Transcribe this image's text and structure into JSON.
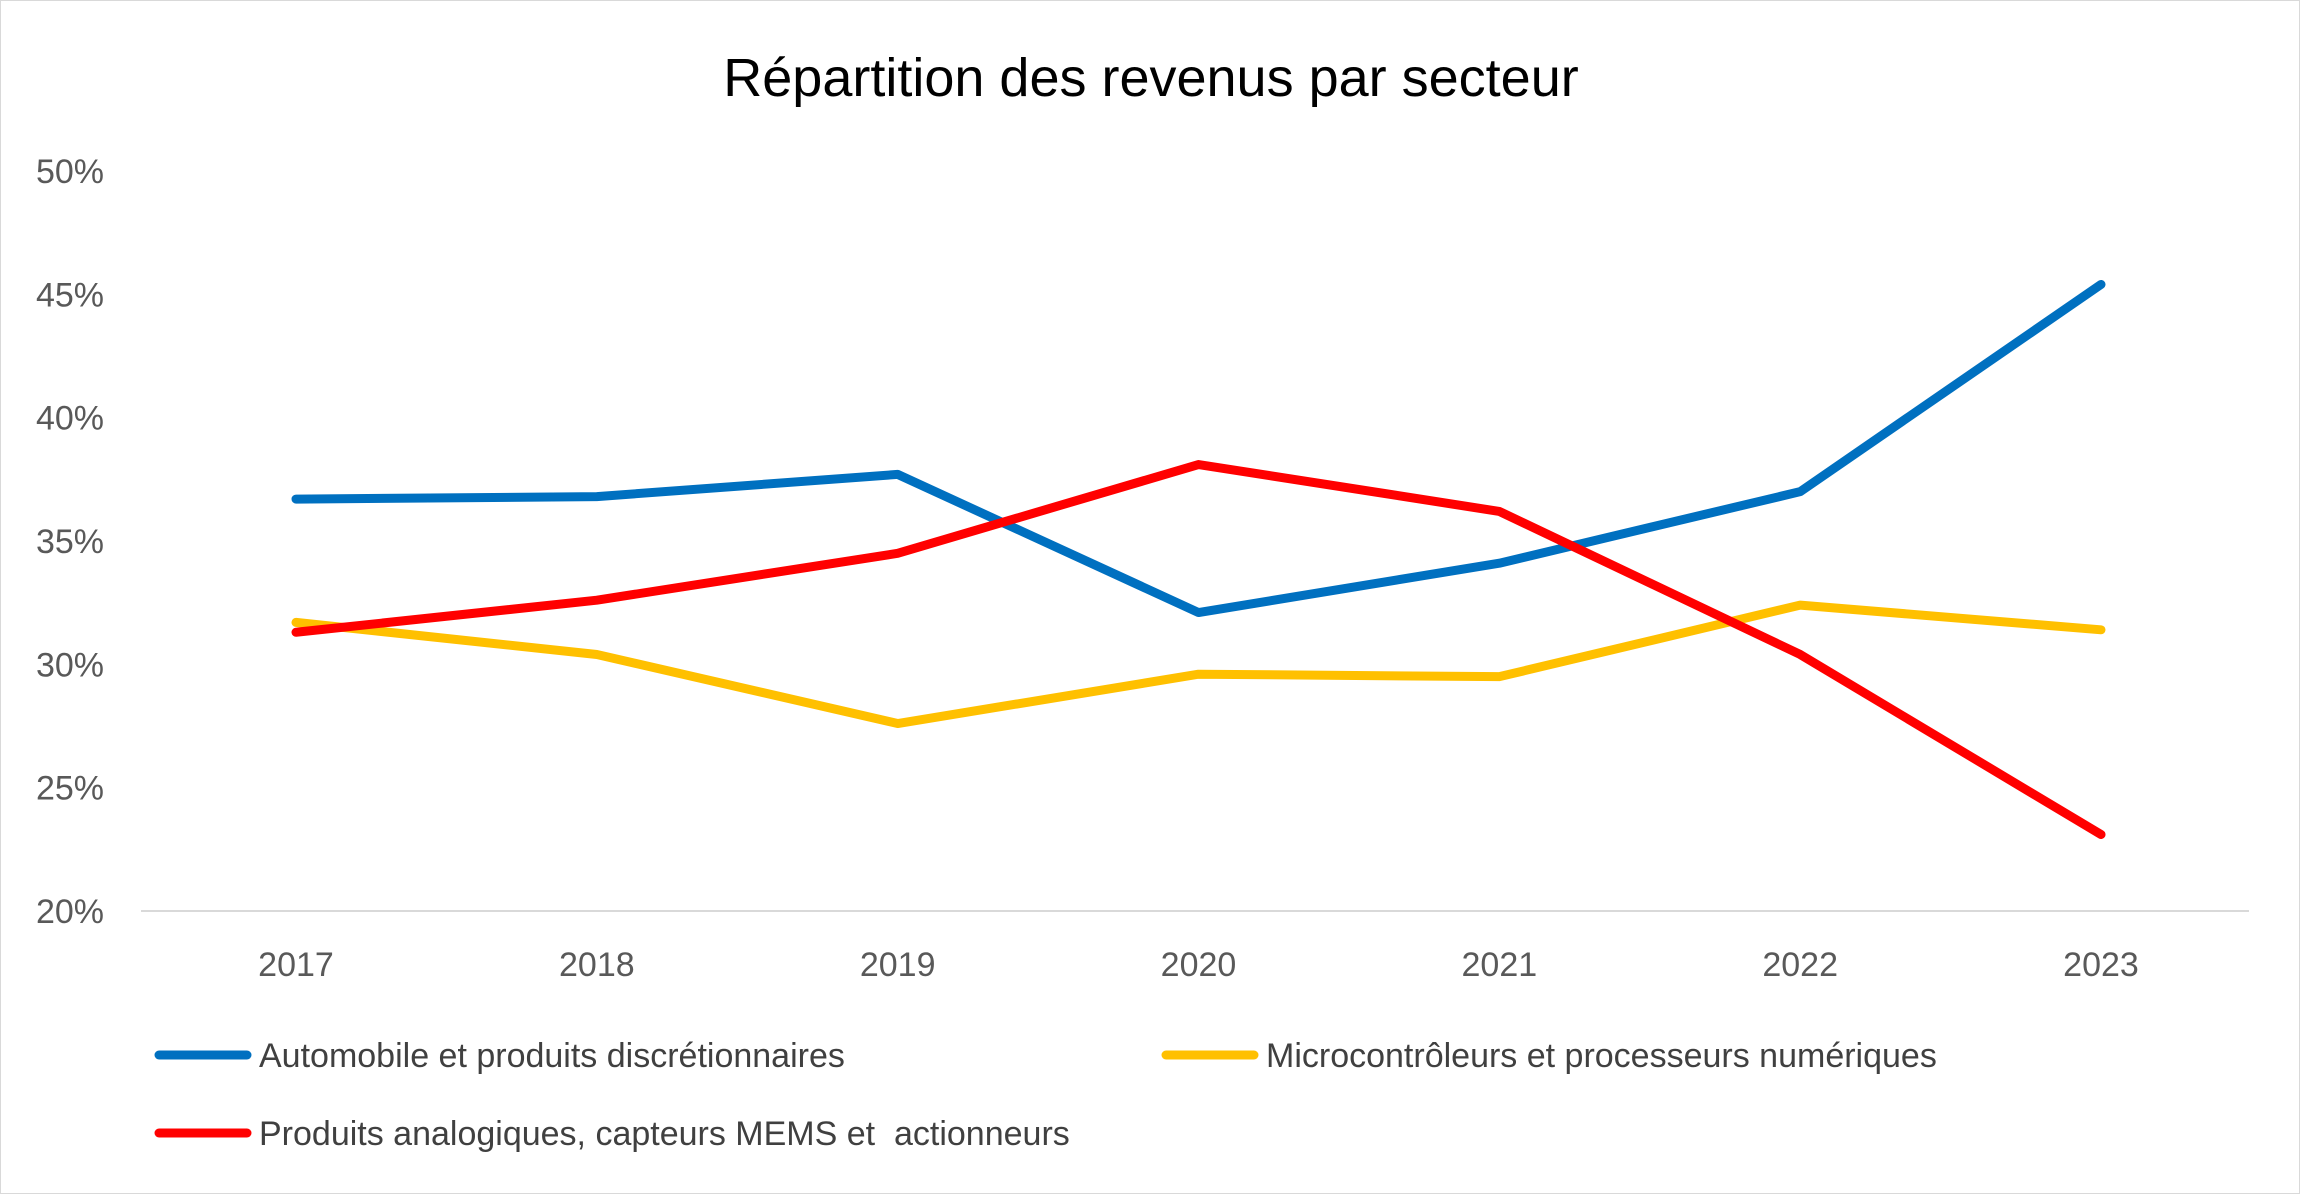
{
  "chart_data": {
    "type": "line",
    "title": "Répartition des revenus par secteur",
    "xlabel": "",
    "ylabel": "",
    "categories": [
      "2017",
      "2018",
      "2019",
      "2020",
      "2021",
      "2022",
      "2023"
    ],
    "y_ticks": [
      "50%",
      "45%",
      "40%",
      "35%",
      "30%",
      "25%",
      "20%"
    ],
    "ylim": [
      20,
      50
    ],
    "grid": false,
    "legend_position": "bottom",
    "series": [
      {
        "name": "Automobile et produits discrétionnaires",
        "color": "#0070C0",
        "values": [
          36.7,
          36.8,
          37.7,
          32.1,
          34.1,
          37.0,
          45.4
        ]
      },
      {
        "name": "Microcontrôleurs et processeurs numériques",
        "color": "#FFC000",
        "values": [
          31.7,
          30.4,
          27.6,
          29.6,
          29.5,
          32.4,
          31.4
        ]
      },
      {
        "name": "Produits analogiques, capteurs MEMS et  actionneurs",
        "color": "#FF0000",
        "values": [
          31.3,
          32.6,
          34.5,
          38.1,
          36.2,
          30.4,
          23.1
        ]
      }
    ]
  }
}
